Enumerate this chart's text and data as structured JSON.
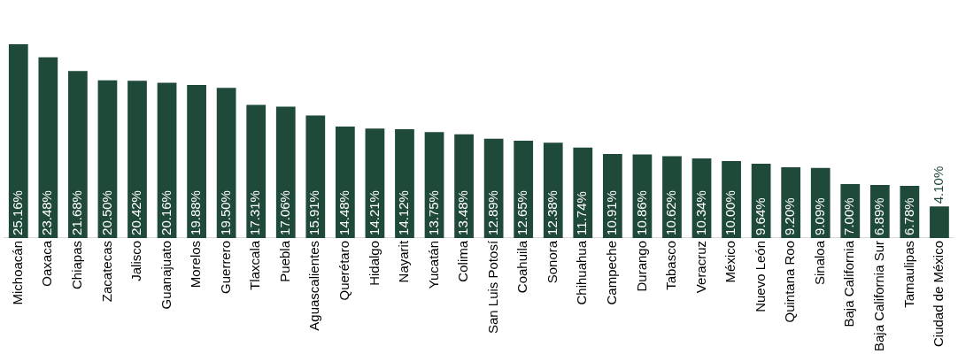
{
  "chart_data": {
    "type": "bar",
    "categories": [
      "Michoacán",
      "Oaxaca",
      "Chiapas",
      "Zacatecas",
      "Jalisco",
      "Guanajuato",
      "Morelos",
      "Guerrero",
      "Tlaxcala",
      "Puebla",
      "Aguascalientes",
      "Querétaro",
      "Hidalgo",
      "Nayarit",
      "Yucatán",
      "Colima",
      "San Luis Potosí",
      "Coahuila",
      "Sonora",
      "Chihuahua",
      "Campeche",
      "Durango",
      "Tabasco",
      "Veracruz",
      "México",
      "Nuevo León",
      "Quintana Roo",
      "Sinaloa",
      "Baja California",
      "Baja California Sur",
      "Tamaulipas",
      "Ciudad de México"
    ],
    "values": [
      25.16,
      23.48,
      21.68,
      20.5,
      20.42,
      20.16,
      19.88,
      19.5,
      17.31,
      17.06,
      15.91,
      14.48,
      14.21,
      14.12,
      13.75,
      13.48,
      12.89,
      12.65,
      12.38,
      11.74,
      10.91,
      10.86,
      10.62,
      10.34,
      10.0,
      9.64,
      9.2,
      9.09,
      7.0,
      6.89,
      6.78,
      4.1
    ],
    "value_labels": [
      "25.16%",
      "23.48%",
      "21.68%",
      "20.50%",
      "20.42%",
      "20.16%",
      "19.88%",
      "19.50%",
      "17.31%",
      "17.06%",
      "15.91%",
      "14.48%",
      "14.21%",
      "14.12%",
      "13.75%",
      "13.48%",
      "12.89%",
      "12.65%",
      "12.38%",
      "11.74%",
      "10.91%",
      "10.86%",
      "10.62%",
      "10.34%",
      "10.00%",
      "9.64%",
      "9.20%",
      "9.09%",
      "7.00%",
      "6.89%",
      "6.78%",
      "4.10%"
    ],
    "color": "#1f4a3a",
    "grid": false,
    "legend": false
  }
}
